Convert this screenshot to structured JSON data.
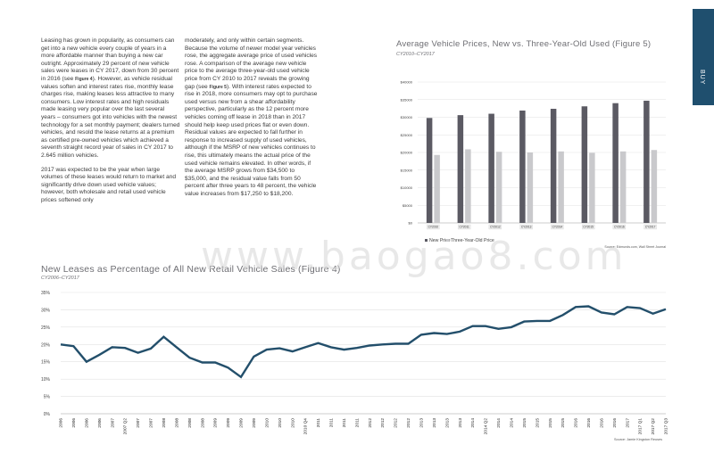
{
  "side_tab": {
    "label": "BUY"
  },
  "watermark": "www.baogao8.com",
  "text": {
    "col1_p1": "Leasing has grown in popularity, as consumers can get into a new vehicle every couple of years in a more affordable manner than buying a new car outright. Approximately 29 percent of new vehicle sales were leases in CY 2017, down from 30 percent in 2016 (see Figure 4). However, as vehicle residual values soften and interest rates rise, monthly lease charges rise, making leases less attractive to many consumers. Low interest rates and high residuals made leasing very popular over the last several years – consumers got into vehicles with the newest technology for a set monthly payment; dealers turned vehicles, and resold the lease returns at a premium as certified pre-owned vehicles which achieved a seventh straight record year of sales in CY 2017 to 2.645 million vehicles.",
    "col1_p2": "2017 was expected to be the year when large volumes of these leases would return to market and significantly drive down used vehicle values; however, both wholesale and retail used vehicle prices softened only",
    "col2_p1": "moderately, and only within certain segments. Because the volume of newer model year vehicles rose, the aggregate average price of used vehicles rose. A comparison of the average new vehicle price to the average three-year-old used vehicle price from CY 2010 to 2017 reveals the growing gap (see Figure 5). With interest rates expected to rise in 2018, more consumers may opt to purchase used versus new from a shear affordability perspective, particularly as the 12 percent more vehicles coming off lease in 2018 than in 2017 should help keep used prices flat or even down. Residual values are expected to fall further in response to increased supply of used vehicles, although if the MSRP of new vehicles continues to rise, this ultimately means the actual price of the used vehicle remains elevated. In other words, if the average MSRP grows from $34,500 to $35,000, and the residual value falls from 50 percent after three years to 48 percent, the vehicle value increases from $17,250 to $18,200."
  },
  "chart_data": [
    {
      "type": "bar",
      "title": "Average Vehicle Prices, New vs. Three-Year-Old Used (Figure 5)",
      "subtitle": "CY2010–CY2017",
      "categories": [
        "CY2010",
        "CY2011",
        "CY2012",
        "CY2013",
        "CY2014",
        "CY2015",
        "CY2016",
        "CY2017"
      ],
      "series": [
        {
          "name": "New Price",
          "color": "#5b5a63",
          "values": [
            29800,
            30600,
            31000,
            31900,
            32400,
            33100,
            34000,
            34700
          ]
        },
        {
          "name": "Three-Year-Old Price",
          "color": "#c9c9cc",
          "values": [
            19300,
            20900,
            20200,
            20000,
            20300,
            19900,
            20300,
            20700
          ]
        }
      ],
      "ylim": [
        0,
        40000
      ],
      "yticks": [
        "$0",
        "$5000",
        "$10000",
        "$15000",
        "$20000",
        "$25000",
        "$30000",
        "$35000",
        "$40000"
      ],
      "source": "Source: Edmunds.com, Wall Street Journal"
    },
    {
      "type": "line",
      "title": "New Leases as Percentage of All New Retail Vehicle Sales (Figure 4)",
      "subtitle": "CY2006–CY2017",
      "color": "#234f6b",
      "x": [
        "2006",
        "2006",
        "2006",
        "2006",
        "2007",
        "2007 Q2",
        "2007",
        "2007",
        "2008",
        "2008",
        "2008",
        "2008",
        "2009",
        "2009",
        "2009",
        "2009",
        "2010",
        "2010",
        "2010",
        "2010 Q4",
        "2011",
        "2011",
        "2011",
        "2011",
        "2012",
        "2012",
        "2012",
        "2012",
        "2013",
        "2013",
        "2013",
        "2013",
        "2014",
        "2014 Q2",
        "2014",
        "2014",
        "2015",
        "2015",
        "2015",
        "2015",
        "2016",
        "2016",
        "2016",
        "2016",
        "2017",
        "2017 Q1",
        "2017 Q2",
        "2017 Q3"
      ],
      "values": [
        20,
        19.5,
        15,
        17,
        19.2,
        19,
        17.6,
        18.8,
        22.2,
        19.2,
        16.2,
        14.8,
        14.8,
        13.3,
        10.6,
        16.5,
        18.5,
        18.9,
        18,
        19.2,
        20.4,
        19.2,
        18.5,
        19,
        19.7,
        20,
        20.2,
        20.2,
        22.8,
        23.3,
        23,
        23.7,
        25.3,
        25.3,
        24.5,
        25,
        26.6,
        26.8,
        26.8,
        28.5,
        30.8,
        31,
        29.2,
        28.7,
        30.8,
        30.5,
        28.9,
        30.2
      ],
      "ylim": [
        0,
        35
      ],
      "yticks": [
        "0%",
        "5%",
        "10%",
        "15%",
        "20%",
        "25%",
        "30%",
        "35%"
      ],
      "source": "Source: Jamie Kingston Reuses"
    }
  ]
}
